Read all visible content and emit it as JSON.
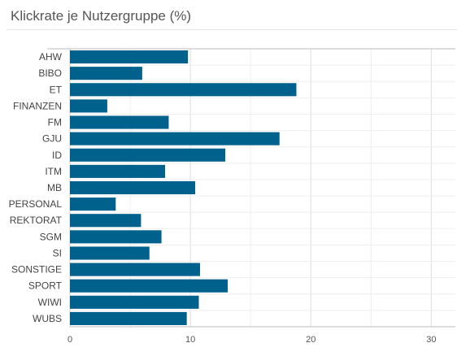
{
  "chart_data": {
    "type": "bar",
    "orientation": "horizontal",
    "title": "Klickrate je Nutzergruppe (%)",
    "categories": [
      "AHW",
      "BIBO",
      "ET",
      "FINANZEN",
      "FM",
      "GJU",
      "ID",
      "ITM",
      "MB",
      "PERSONAL",
      "REKTORAT",
      "SGM",
      "SI",
      "SONSTIGE",
      "SPORT",
      "WIWI",
      "WUBS"
    ],
    "values": [
      9.8,
      6.0,
      18.8,
      3.1,
      8.2,
      17.4,
      12.9,
      7.9,
      10.4,
      3.8,
      5.9,
      7.6,
      6.6,
      10.8,
      13.1,
      10.7,
      9.7
    ],
    "xlim": [
      0,
      32
    ],
    "xticks": [
      0,
      10,
      20,
      30
    ],
    "grid": true,
    "bar_color": "#00618c"
  }
}
